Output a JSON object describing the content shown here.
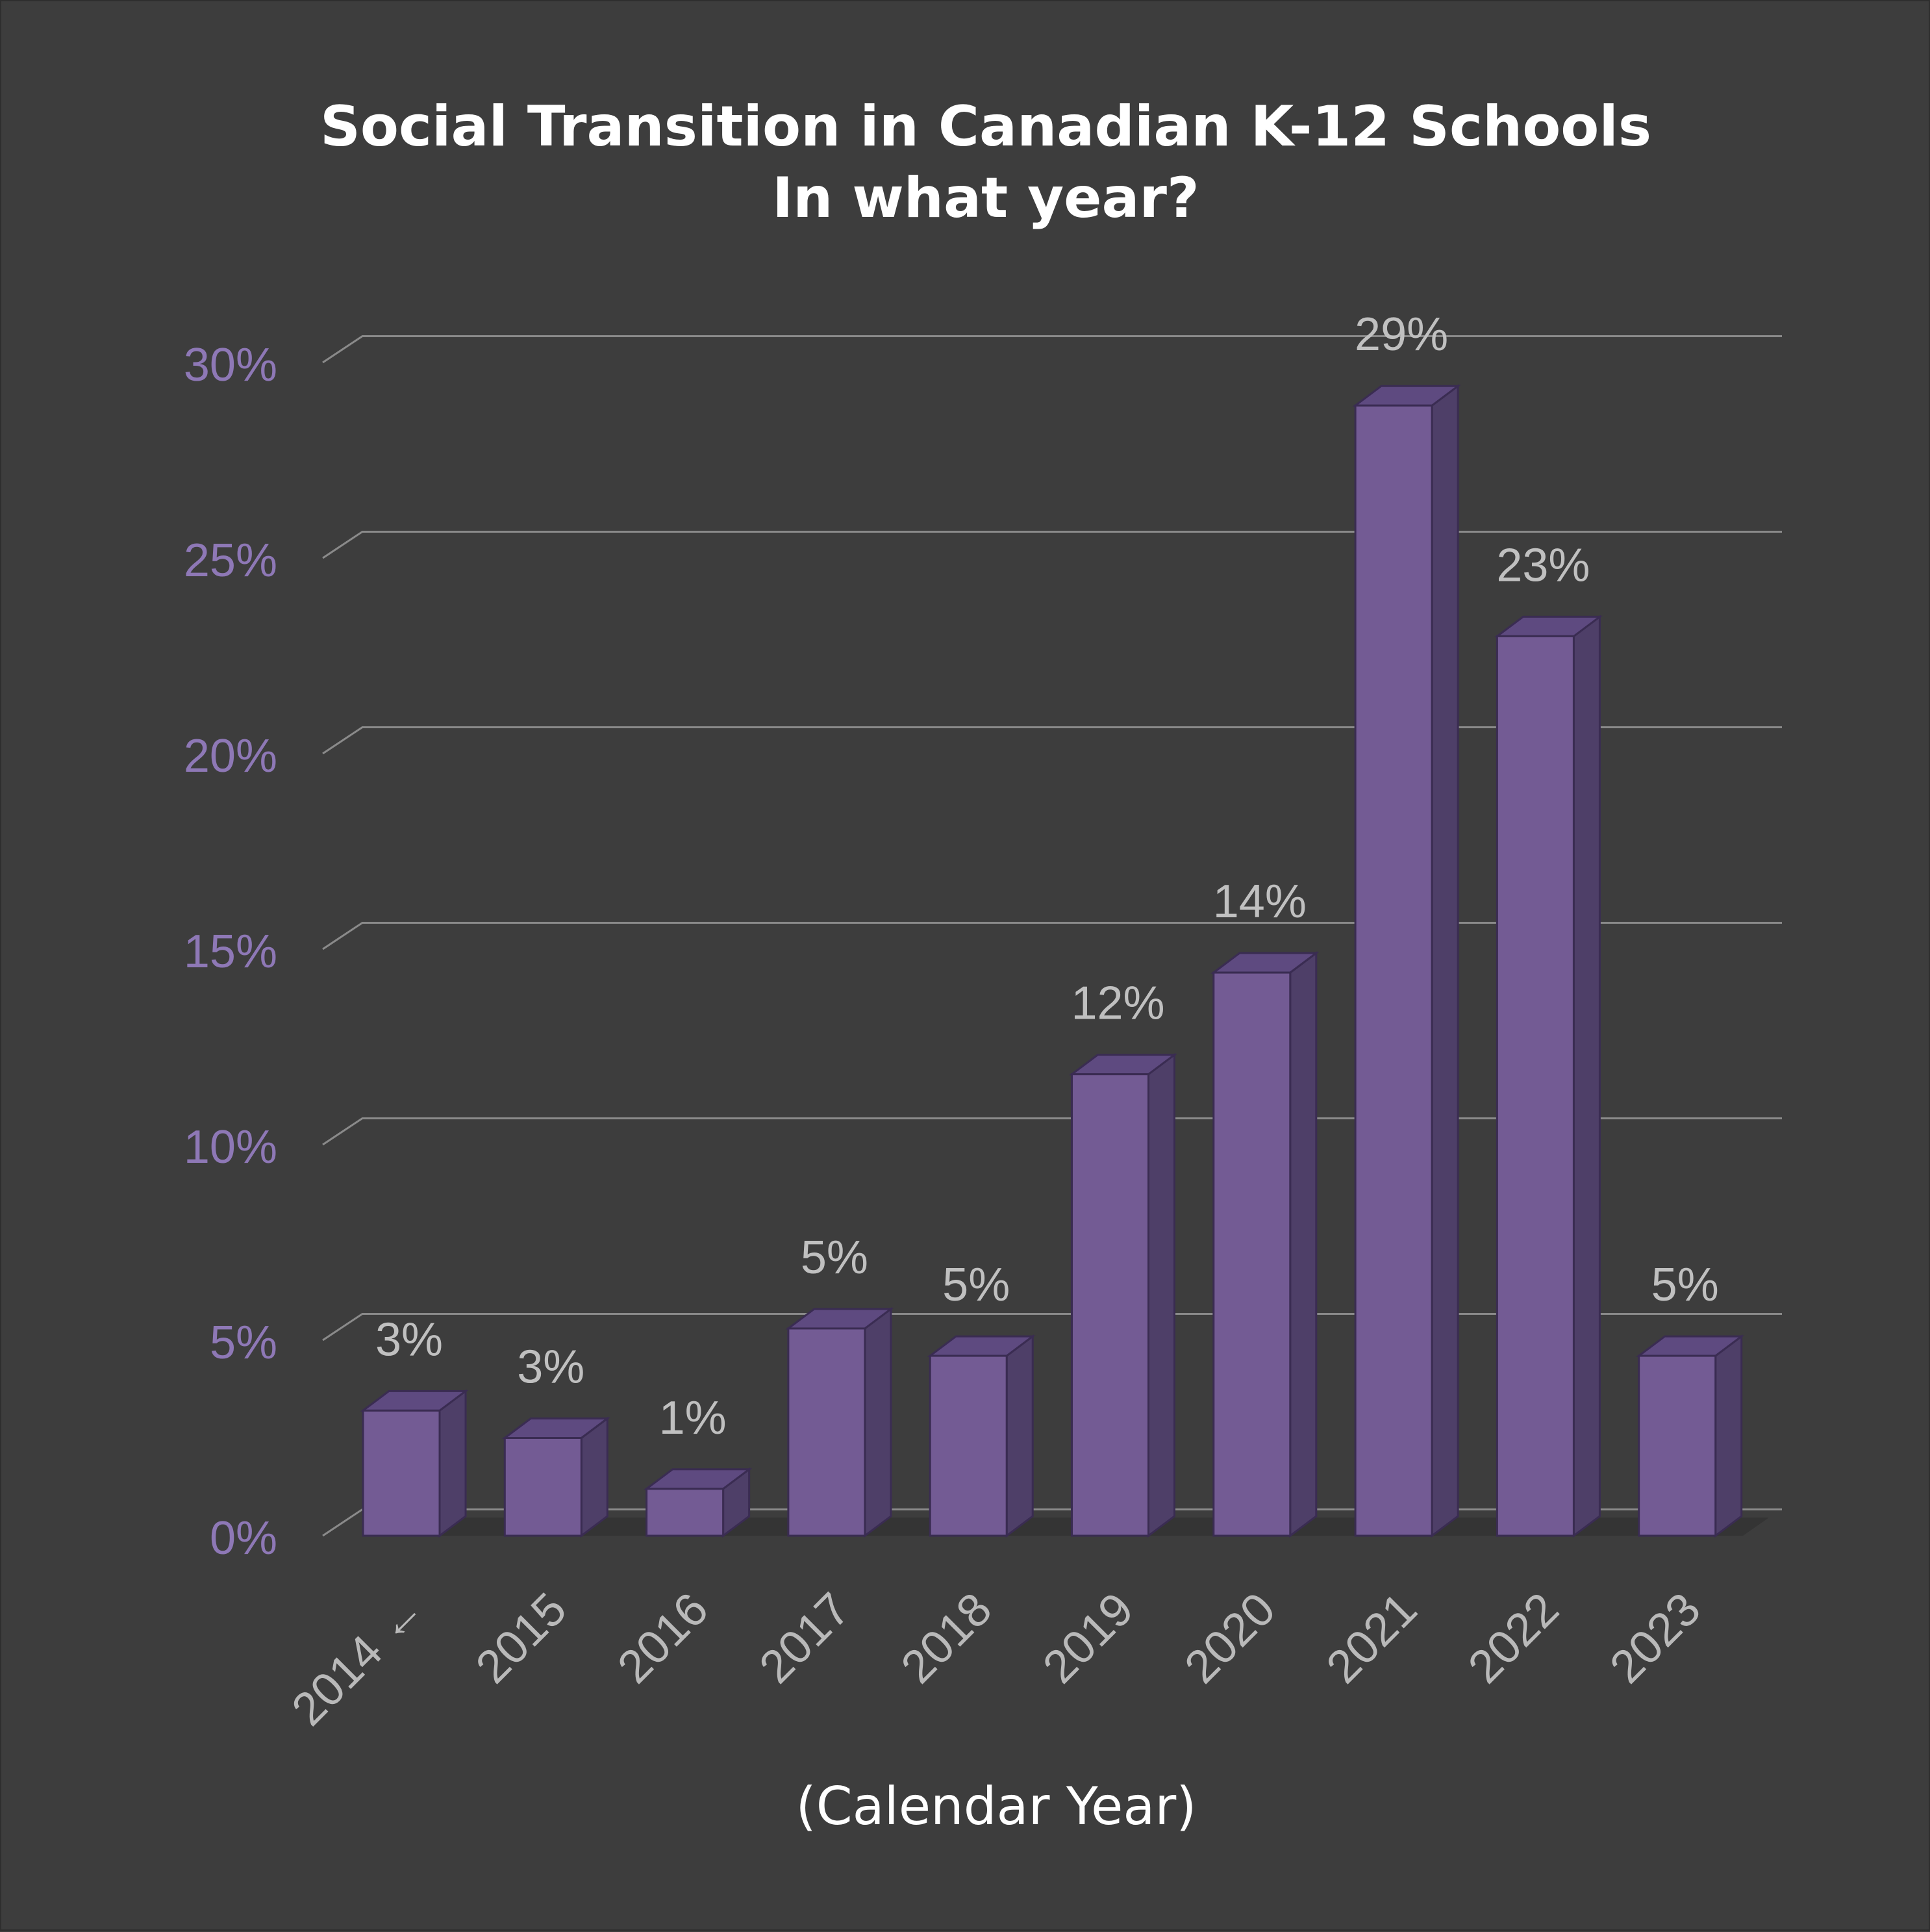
{
  "chart_data": {
    "type": "bar",
    "title": "Social Transition in Canadian K-12 Schools",
    "subtitle": "In what year?",
    "xlabel": "(Calendar Year)",
    "ylabel": "",
    "categories": [
      "2014 ←",
      "2015",
      "2016",
      "2017",
      "2018",
      "2019",
      "2020",
      "2021",
      "2022",
      "2023"
    ],
    "values": [
      3.2,
      2.5,
      1.2,
      5.3,
      4.6,
      11.8,
      14.4,
      28.9,
      23.0,
      4.6
    ],
    "data_labels": [
      "3%",
      "3%",
      "1%",
      "5%",
      "5%",
      "12%",
      "14%",
      "29%",
      "23%",
      "5%"
    ],
    "ylim": [
      0,
      30
    ],
    "yticks": [
      0,
      5,
      10,
      15,
      20,
      25,
      30
    ],
    "ytick_labels": [
      "0%",
      "5%",
      "10%",
      "15%",
      "20%",
      "25%",
      "30%"
    ],
    "grid": true,
    "style": "3d",
    "colors": {
      "background": "#3d3d3d",
      "bar_front": "#735b94",
      "bar_top": "#5e4a80",
      "bar_side": "#4e3f68",
      "bar_stroke": "#3a2c52",
      "grid": "#8a8a8a",
      "ytick": "#8e78b6",
      "xtick": "#b9b9b9",
      "data_label": "#c0c0c0",
      "title": "#ffffff"
    }
  }
}
